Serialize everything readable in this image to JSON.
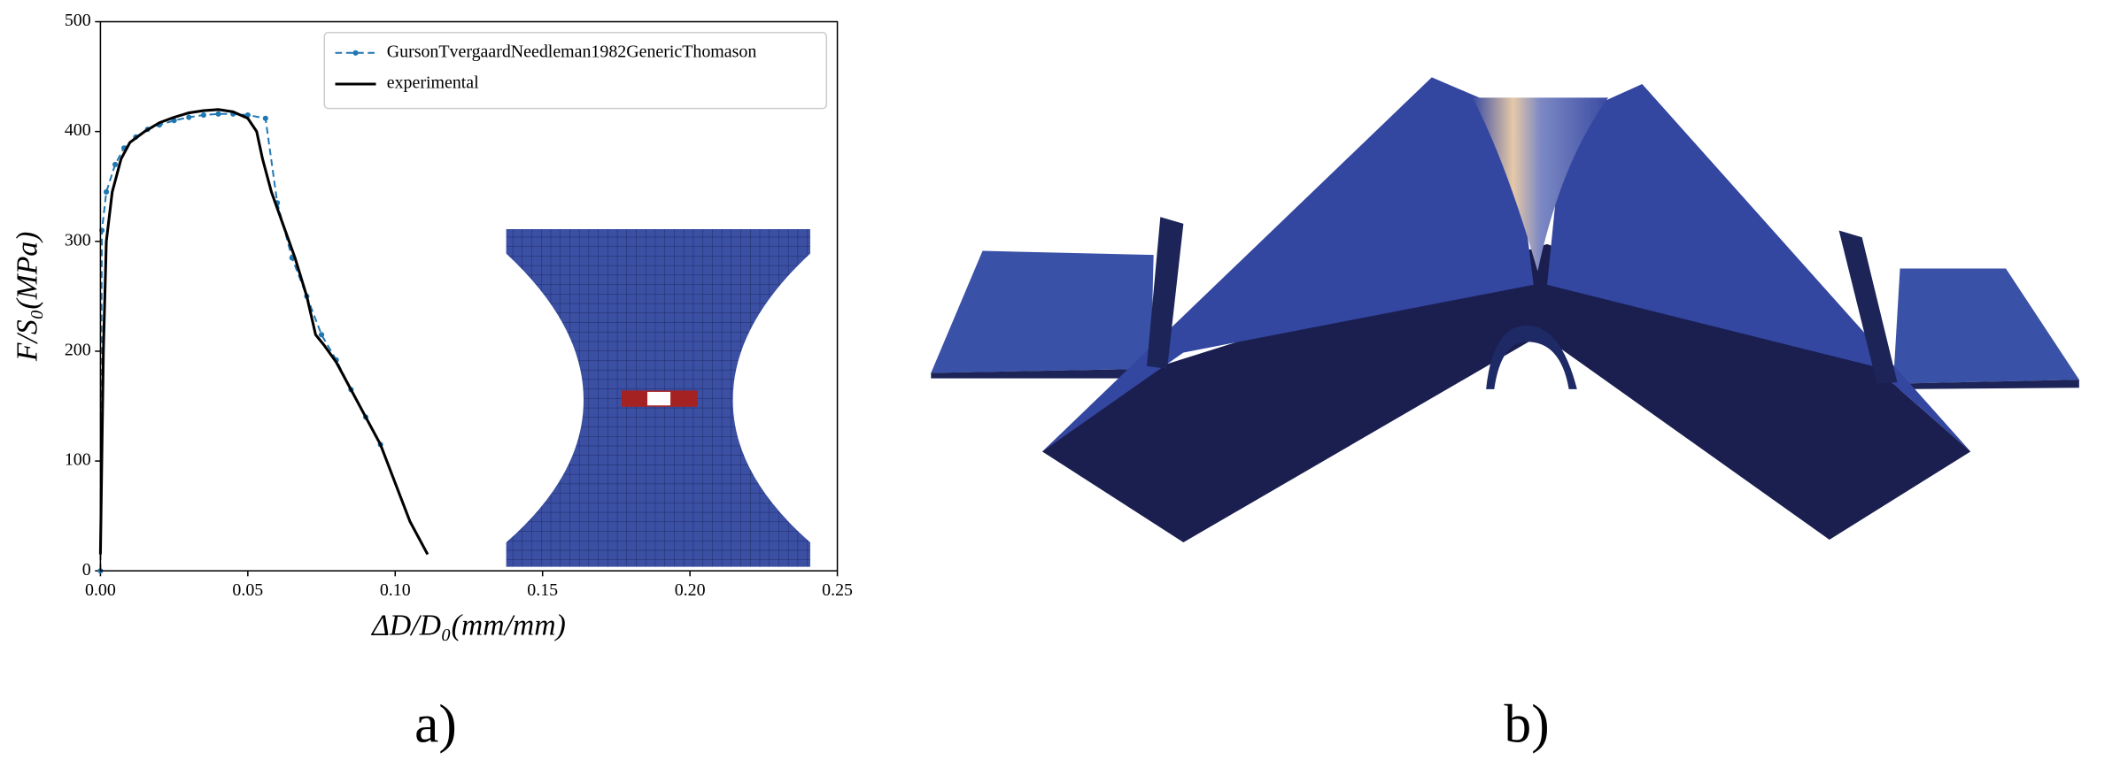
{
  "chart_data": {
    "type": "line",
    "xlabel": "ΔD/D₀(mm/mm)",
    "ylabel": "F/S₀(MPa)",
    "xlim": [
      0,
      0.25
    ],
    "xticks": [
      {
        "value": 0,
        "label": "0.00"
      },
      {
        "value": 0.05,
        "label": "0.05"
      },
      {
        "value": 0.1,
        "label": "0.10"
      },
      {
        "value": 0.15,
        "label": "0.15"
      },
      {
        "value": 0.2,
        "label": "0.20"
      },
      {
        "value": 0.25,
        "label": "0.25"
      }
    ],
    "ylim": [
      0,
      500
    ],
    "yticks": [
      0,
      100,
      200,
      300,
      400,
      500
    ],
    "legend": "upper right",
    "series": [
      {
        "name": "GursonTvergaardNeedleman1982GenericThomason",
        "color": "#1f77b4",
        "style": "dashed",
        "marker": true,
        "x": [
          0,
          0.0005,
          0.002,
          0.005,
          0.008,
          0.012,
          0.016,
          0.02,
          0.025,
          0.03,
          0.035,
          0.04,
          0.045,
          0.05,
          0.056,
          0.06,
          0.065,
          0.07,
          0.075,
          0.08,
          0.085,
          0.09,
          0.095
        ],
        "values": [
          0,
          310,
          345,
          370,
          385,
          395,
          402,
          406,
          410,
          413,
          415,
          416,
          416,
          415,
          412,
          335,
          285,
          250,
          215,
          192,
          165,
          140,
          115
        ]
      },
      {
        "name": "experimental",
        "color": "#000000",
        "style": "solid",
        "marker": false,
        "x": [
          0,
          0.001,
          0.002,
          0.004,
          0.007,
          0.01,
          0.015,
          0.02,
          0.025,
          0.03,
          0.035,
          0.04,
          0.045,
          0.05,
          0.053,
          0.055,
          0.058,
          0.062,
          0.066,
          0.07,
          0.073,
          0.076,
          0.08,
          0.085,
          0.09,
          0.095,
          0.1,
          0.105,
          0.111
        ],
        "values": [
          15,
          200,
          300,
          345,
          375,
          390,
          400,
          408,
          413,
          417,
          419,
          420,
          418,
          412,
          400,
          375,
          345,
          315,
          285,
          250,
          215,
          205,
          190,
          165,
          140,
          115,
          80,
          45,
          15
        ]
      }
    ]
  },
  "captions": [
    "a)",
    "b)"
  ]
}
